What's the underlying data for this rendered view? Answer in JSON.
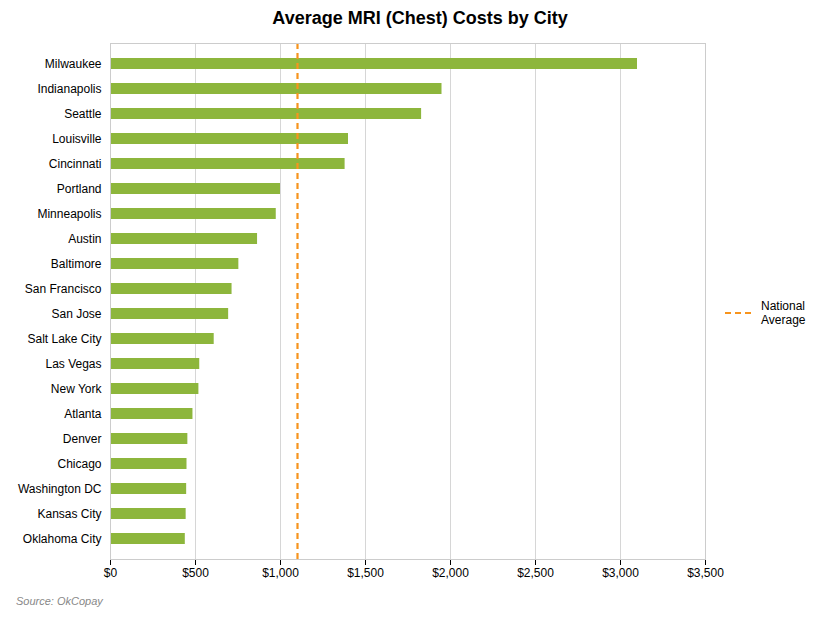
{
  "chart_data": {
    "type": "bar",
    "orientation": "horizontal",
    "title": "Average MRI (Chest) Costs by City",
    "categories": [
      "Milwaukee",
      "Indianapolis",
      "Seattle",
      "Louisville",
      "Cincinnati",
      "Portland",
      "Minneapolis",
      "Austin",
      "Baltimore",
      "San Francisco",
      "San Jose",
      "Salt Lake City",
      "Las Vegas",
      "New York",
      "Atlanta",
      "Denver",
      "Chicago",
      "Washington DC",
      "Kansas City",
      "Oklahoma City"
    ],
    "values": [
      3100,
      1950,
      1830,
      1400,
      1380,
      1000,
      975,
      865,
      755,
      715,
      695,
      610,
      525,
      520,
      485,
      455,
      450,
      448,
      445,
      440
    ],
    "color": "#8db63c",
    "xlim": [
      0,
      3500
    ],
    "xticks": [
      {
        "value": 0,
        "label": "$0"
      },
      {
        "value": 500,
        "label": "$500"
      },
      {
        "value": 1000,
        "label": "$1,000"
      },
      {
        "value": 1500,
        "label": "$1,500"
      },
      {
        "value": 2000,
        "label": "$2,000"
      },
      {
        "value": 2500,
        "label": "$2,500"
      },
      {
        "value": 3000,
        "label": "$3,000"
      },
      {
        "value": 3500,
        "label": "$3,500"
      }
    ],
    "grid": true,
    "reference_lines": [
      {
        "name": "National\nAverage",
        "value": 1100,
        "color": "#f7941d",
        "line_style": "dashed"
      }
    ],
    "legend": "right",
    "annotations": [
      "Source: OkCopay"
    ]
  }
}
